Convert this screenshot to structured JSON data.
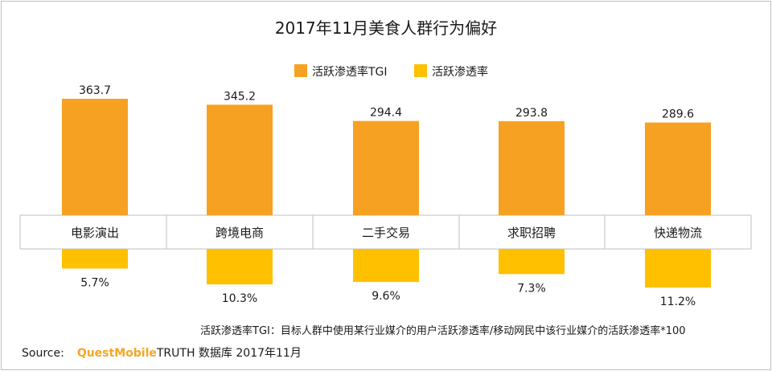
{
  "chart_data": {
    "type": "bar",
    "title": "2017年11月美食人群行为偏好",
    "categories": [
      "电影演出",
      "跨境电商",
      "二手交易",
      "求职招聘",
      "快递物流"
    ],
    "series": [
      {
        "name": "活跃渗透率TGI",
        "values": [
          363.7,
          345.2,
          294.4,
          293.8,
          289.6
        ],
        "labels": [
          "363.7",
          "345.2",
          "294.4",
          "293.8",
          "289.6"
        ]
      },
      {
        "name": "活跃渗透率",
        "values": [
          5.7,
          10.3,
          9.6,
          7.3,
          11.2
        ],
        "labels": [
          "5.7%",
          "10.3%",
          "9.6%",
          "7.3%",
          "11.2%"
        ]
      }
    ],
    "legend_position": "top-center",
    "grid": false
  },
  "colors": {
    "tgi": "#f7a123",
    "rate": "#ffc000"
  },
  "note": "活跃渗透率TGI：目标人群中使用某行业媒介的用户活跃渗透率/移动网民中该行业媒介的活跃渗透率*100",
  "source": {
    "label": "Source:",
    "brand": "QuestMobile",
    "rest": "TRUTH 数据库 2017年11月"
  }
}
